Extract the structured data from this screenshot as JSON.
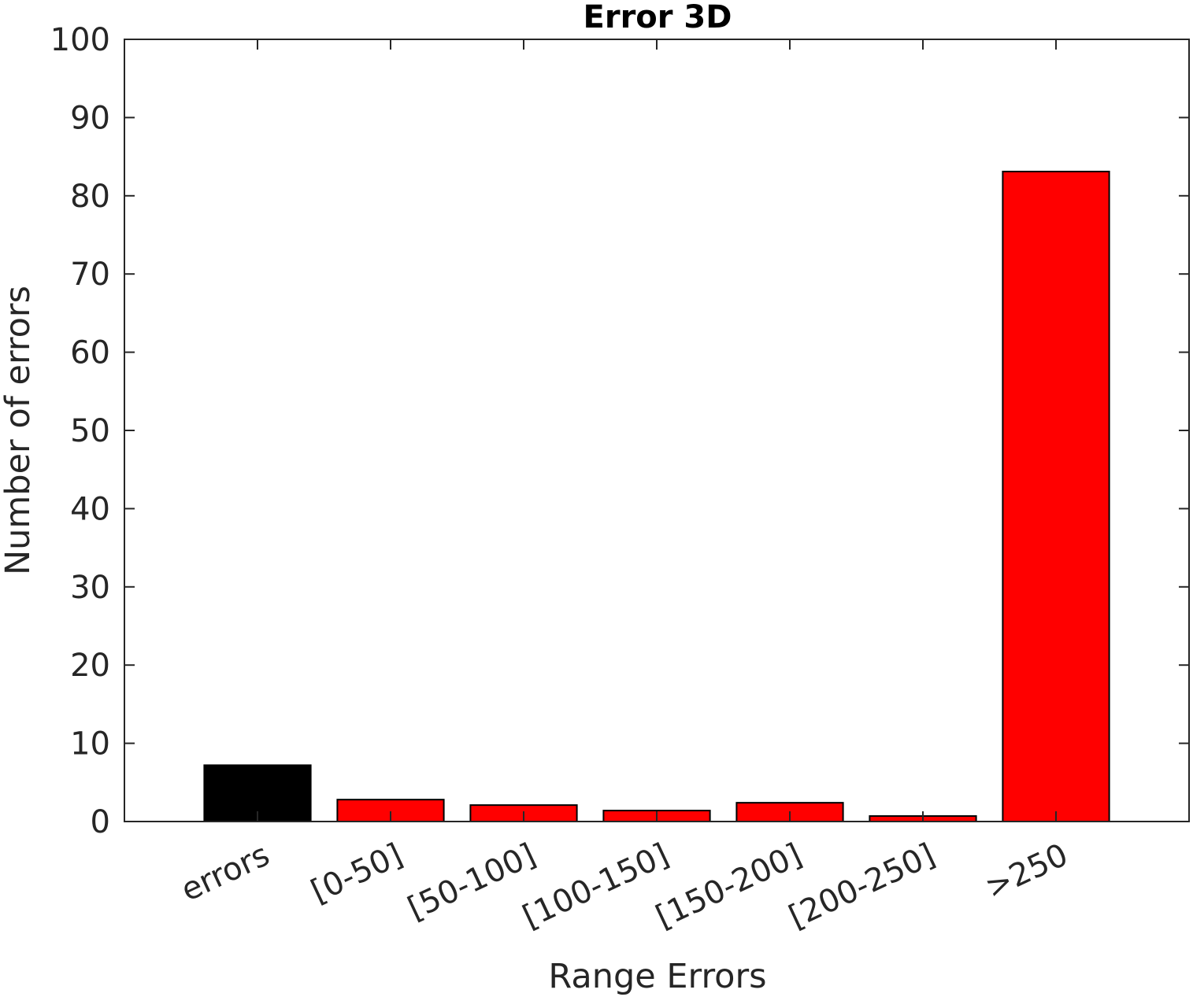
{
  "chart_data": {
    "type": "bar",
    "title": "Error 3D",
    "xlabel": "Range Errors",
    "ylabel": "Number of errors",
    "categories": [
      "errors",
      "[0-50]",
      "[50-100]",
      "[100-150]",
      "[150-200]",
      "[200-250]",
      ">250"
    ],
    "values": [
      7.2,
      2.8,
      2.1,
      1.4,
      2.4,
      0.7,
      83.1
    ],
    "bar_colors": [
      "#000000",
      "#ff0000",
      "#ff0000",
      "#ff0000",
      "#ff0000",
      "#ff0000",
      "#ff0000"
    ],
    "ylim": [
      0,
      100
    ],
    "yticks": [
      0,
      10,
      20,
      30,
      40,
      50,
      60,
      70,
      80,
      90,
      100
    ],
    "grid": false,
    "legend": "none"
  }
}
